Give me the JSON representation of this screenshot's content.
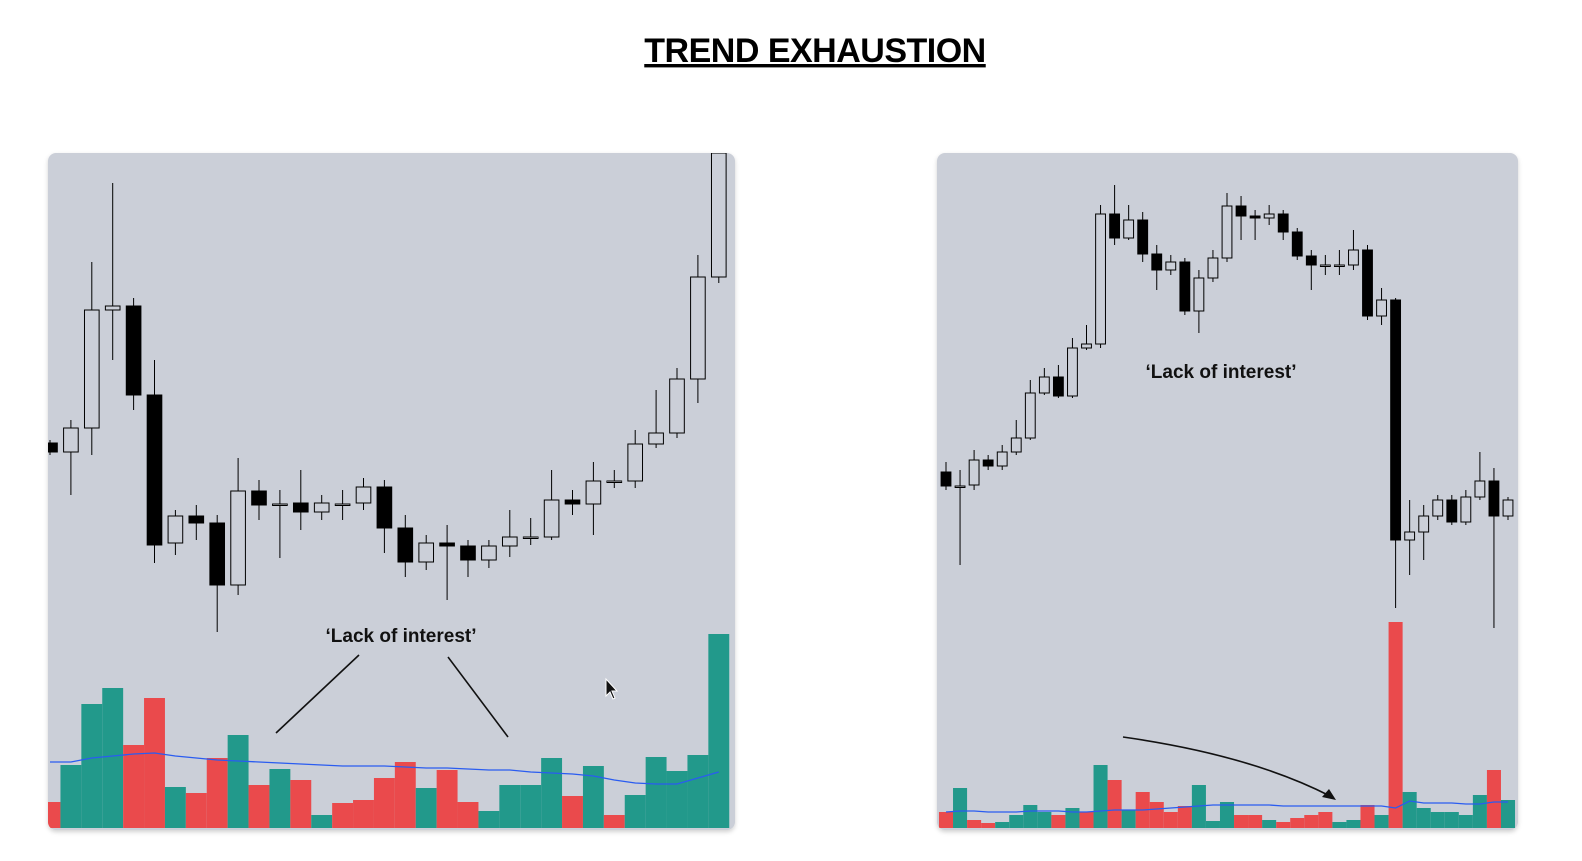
{
  "header": {
    "title": "TREND EXHAUSTION"
  },
  "chart_data": [
    {
      "type": "candlestick",
      "annotation": "‘Lack of interest’",
      "candle_color": "#000000",
      "ylim": [
        0,
        677
      ],
      "volume_ylim": [
        0,
        210
      ],
      "open": [
        387,
        378,
        402,
        520,
        524,
        435,
        287,
        314,
        307,
        245,
        339,
        326,
        327,
        318,
        326,
        327,
        343,
        302,
        268,
        287,
        284,
        270,
        284,
        293,
        293,
        330,
        326,
        349,
        349,
        386,
        397,
        451,
        553
      ],
      "high": [
        390,
        410,
        568,
        647,
        532,
        470,
        320,
        325,
        315,
        372,
        350,
        340,
        360,
        335,
        340,
        352,
        350,
        315,
        295,
        305,
        290,
        290,
        320,
        312,
        360,
        340,
        368,
        360,
        400,
        440,
        462,
        575,
        677
      ],
      "low": [
        375,
        335,
        375,
        470,
        420,
        267,
        275,
        290,
        198,
        235,
        310,
        272,
        300,
        310,
        310,
        320,
        277,
        253,
        260,
        230,
        253,
        262,
        273,
        285,
        290,
        315,
        295,
        342,
        342,
        382,
        392,
        427,
        547
      ],
      "close": [
        378,
        402,
        520,
        524,
        435,
        285,
        314,
        307,
        245,
        339,
        325,
        326,
        318,
        327,
        326,
        343,
        302,
        268,
        287,
        284,
        270,
        284,
        293,
        293,
        330,
        326,
        349,
        349,
        386,
        397,
        451,
        553,
        677
      ],
      "volume": {
        "values": [
          26,
          63,
          124,
          140,
          83,
          130,
          41,
          35,
          70,
          93,
          43,
          59,
          48,
          13,
          25,
          28,
          50,
          66,
          40,
          58,
          26,
          17,
          43,
          43,
          70,
          32,
          62,
          13,
          33,
          71,
          57,
          73,
          194
        ],
        "colors": [
          "#ea4a4c",
          "#22998b",
          "#22998b",
          "#22998b",
          "#ea4a4c",
          "#ea4a4c",
          "#22998b",
          "#ea4a4c",
          "#ea4a4c",
          "#22998b",
          "#ea4a4c",
          "#22998b",
          "#ea4a4c",
          "#22998b",
          "#ea4a4c",
          "#ea4a4c",
          "#ea4a4c",
          "#ea4a4c",
          "#22998b",
          "#ea4a4c",
          "#ea4a4c",
          "#22998b",
          "#22998b",
          "#22998b",
          "#22998b",
          "#ea4a4c",
          "#22998b",
          "#ea4a4c",
          "#22998b",
          "#22998b",
          "#22998b",
          "#22998b",
          "#22998b"
        ]
      },
      "ma": {
        "color": "#2a5cf0",
        "values": [
          66,
          66,
          70,
          72,
          74,
          75,
          72,
          70,
          68,
          67,
          66,
          65,
          64,
          63,
          62,
          62,
          62,
          61,
          60,
          60,
          59,
          58,
          58,
          56,
          55,
          54,
          52,
          48,
          45,
          44,
          44,
          50,
          56
        ]
      }
    },
    {
      "type": "candlestick",
      "annotation": "‘Lack of interest’",
      "candle_color": "#000000",
      "ylim": [
        0,
        677
      ],
      "volume_ylim": [
        0,
        210
      ],
      "open": [
        358,
        344,
        345,
        370,
        364,
        378,
        392,
        437,
        453,
        434,
        482,
        486,
        616,
        592,
        610,
        576,
        560,
        568,
        519,
        552,
        572,
        624,
        614,
        612,
        616,
        598,
        574,
        565,
        565,
        565,
        580,
        514,
        530,
        290,
        298,
        314,
        330,
        308,
        333,
        349,
        314
      ],
      "high": [
        368,
        360,
        380,
        375,
        385,
        410,
        450,
        462,
        465,
        492,
        505,
        625,
        645,
        625,
        618,
        585,
        575,
        572,
        560,
        580,
        637,
        634,
        620,
        625,
        620,
        602,
        580,
        575,
        580,
        600,
        585,
        542,
        532,
        330,
        325,
        335,
        335,
        340,
        378,
        362,
        333
      ],
      "low": [
        340,
        265,
        340,
        360,
        360,
        375,
        390,
        435,
        432,
        432,
        480,
        482,
        585,
        590,
        568,
        540,
        555,
        515,
        497,
        548,
        568,
        590,
        590,
        605,
        590,
        570,
        540,
        555,
        555,
        560,
        510,
        505,
        222,
        255,
        270,
        310,
        305,
        305,
        330,
        202,
        310
      ],
      "close": [
        344,
        344,
        370,
        364,
        378,
        392,
        437,
        453,
        434,
        482,
        486,
        616,
        592,
        610,
        576,
        560,
        568,
        519,
        552,
        572,
        624,
        614,
        612,
        616,
        598,
        574,
        565,
        565,
        565,
        580,
        514,
        530,
        290,
        298,
        314,
        330,
        308,
        333,
        349,
        314,
        330
      ],
      "volume": {
        "values": [
          16,
          40,
          8,
          5,
          6,
          13,
          23,
          16,
          13,
          20,
          16,
          63,
          48,
          18,
          36,
          26,
          16,
          22,
          43,
          7,
          26,
          13,
          13,
          8,
          6,
          10,
          13,
          16,
          6,
          8,
          23,
          13,
          206,
          36,
          20,
          16,
          16,
          13,
          33,
          58,
          28
        ],
        "colors": [
          "#ea4a4c",
          "#22998b",
          "#ea4a4c",
          "#ea4a4c",
          "#22998b",
          "#22998b",
          "#22998b",
          "#22998b",
          "#ea4a4c",
          "#22998b",
          "#ea4a4c",
          "#22998b",
          "#ea4a4c",
          "#22998b",
          "#ea4a4c",
          "#ea4a4c",
          "#ea4a4c",
          "#ea4a4c",
          "#22998b",
          "#22998b",
          "#22998b",
          "#ea4a4c",
          "#ea4a4c",
          "#22998b",
          "#ea4a4c",
          "#ea4a4c",
          "#ea4a4c",
          "#ea4a4c",
          "#22998b",
          "#22998b",
          "#ea4a4c",
          "#22998b",
          "#ea4a4c",
          "#22998b",
          "#22998b",
          "#22998b",
          "#22998b",
          "#22998b",
          "#22998b",
          "#ea4a4c",
          "#22998b"
        ]
      },
      "ma": {
        "color": "#2a5cf0",
        "values": [
          16,
          17,
          17,
          16,
          16,
          16,
          17,
          17,
          17,
          16,
          16,
          17,
          18,
          18,
          18,
          19,
          20,
          21,
          22,
          23,
          23,
          23,
          23,
          23,
          22,
          22,
          22,
          22,
          22,
          22,
          22,
          22,
          20,
          27,
          25,
          25,
          25,
          24,
          24,
          26,
          26
        ]
      }
    }
  ]
}
